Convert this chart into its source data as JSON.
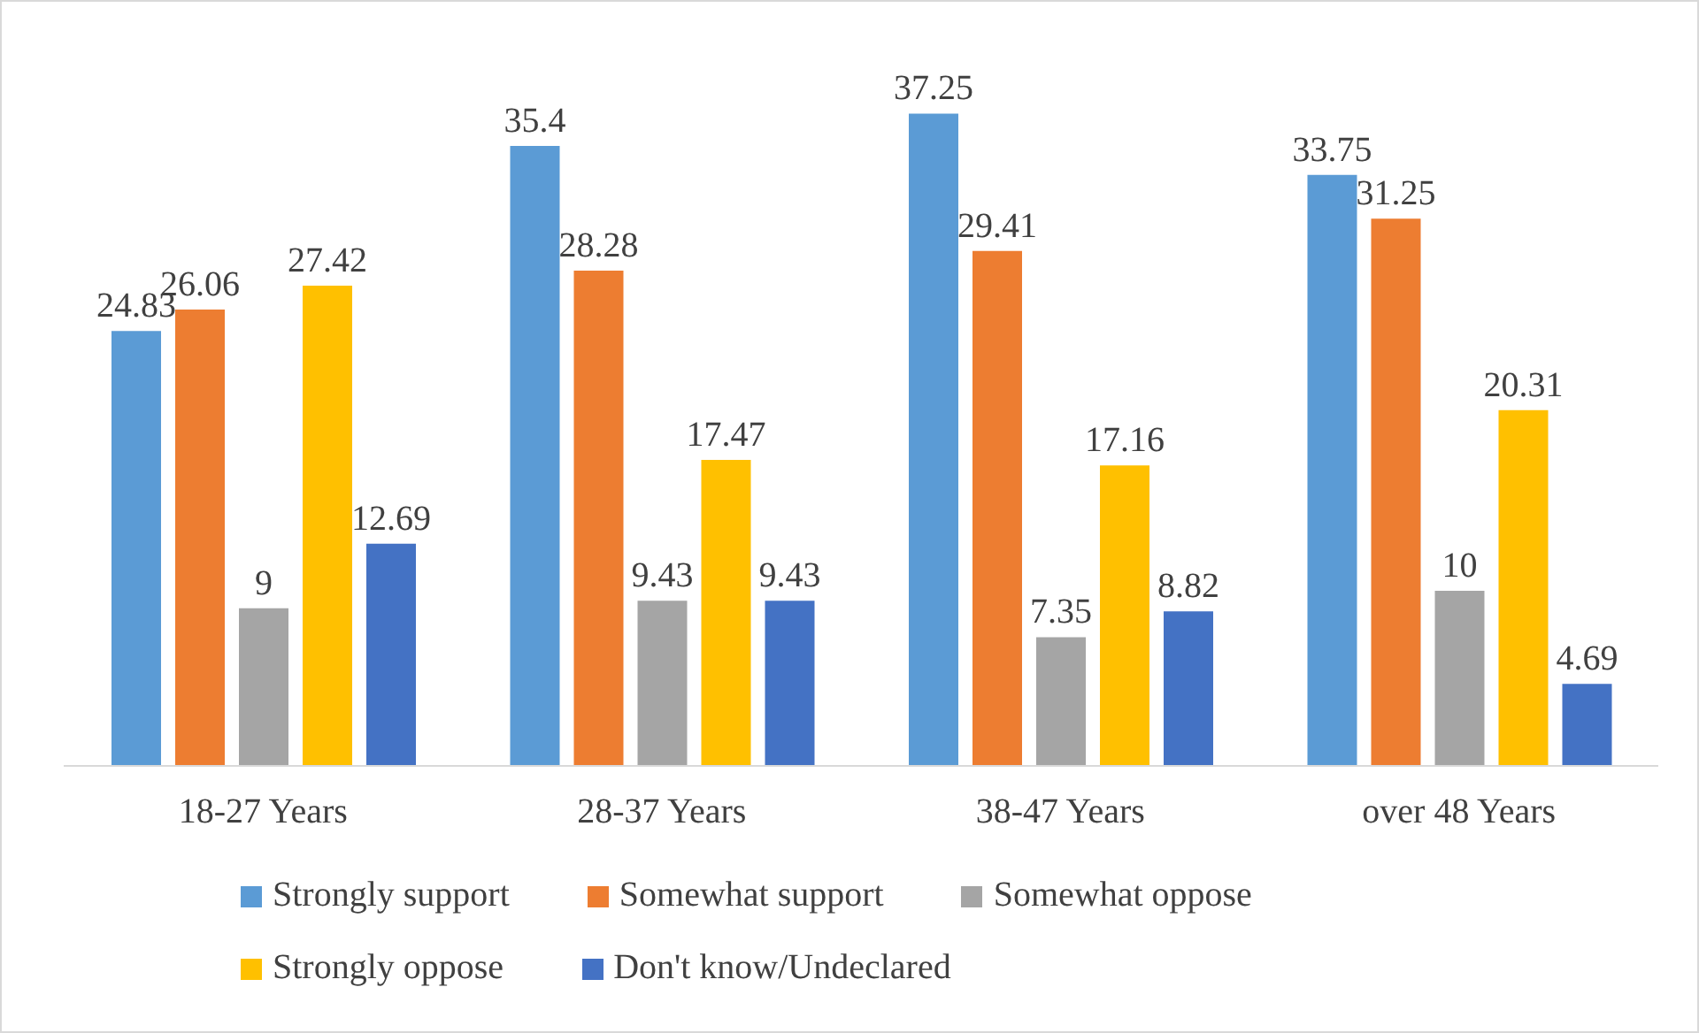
{
  "chart_data": {
    "type": "bar",
    "categories": [
      "18-27 Years",
      "28-37 Years",
      "38-47 Years",
      "over 48 Years"
    ],
    "series": [
      {
        "name": "Strongly support",
        "color": "#5b9bd5",
        "values": [
          24.83,
          35.4,
          37.25,
          33.75
        ]
      },
      {
        "name": "Somewhat support",
        "color": "#ed7d31",
        "values": [
          26.06,
          28.28,
          29.41,
          31.25
        ]
      },
      {
        "name": "Somewhat oppose",
        "color": "#a5a5a5",
        "values": [
          9,
          9.43,
          7.35,
          10
        ]
      },
      {
        "name": "Strongly oppose",
        "color": "#ffc000",
        "values": [
          27.42,
          17.47,
          17.16,
          20.31
        ]
      },
      {
        "name": "Don't know/Undeclared",
        "color": "#4472c4",
        "values": [
          12.69,
          9.43,
          8.82,
          4.69
        ]
      }
    ],
    "data_labels": true,
    "grid": false,
    "legend": "bottom"
  }
}
